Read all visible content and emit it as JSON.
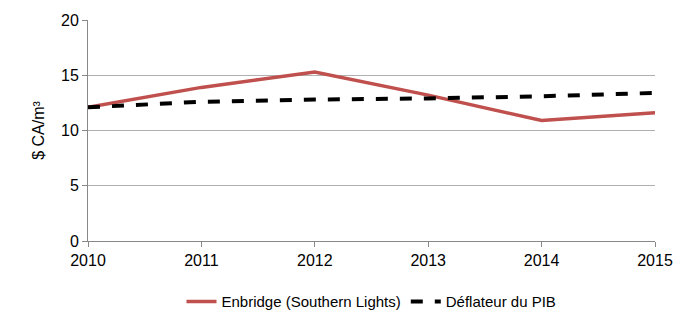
{
  "chart_data": {
    "type": "line",
    "x": [
      2010,
      2011,
      2012,
      2013,
      2014,
      2015
    ],
    "series": [
      {
        "name": "Enbridge (Southern Lights)",
        "color": "#c0504d",
        "line_style": "solid",
        "values": [
          12.1,
          13.9,
          15.3,
          13.2,
          10.9,
          11.6
        ]
      },
      {
        "name": "Déflateur du PIB",
        "color": "#000000",
        "line_style": "dash",
        "values": [
          12.1,
          12.6,
          12.8,
          12.9,
          13.1,
          13.4
        ]
      }
    ],
    "y_label": "$ CA/m³",
    "xlim": [
      2010,
      2015
    ],
    "xticks": [
      2010,
      2011,
      2012,
      2013,
      2014,
      2015
    ],
    "ylim": [
      0,
      20
    ],
    "yticks": [
      0,
      5,
      10,
      15,
      20
    ],
    "grid": true,
    "legend": "bottom"
  }
}
